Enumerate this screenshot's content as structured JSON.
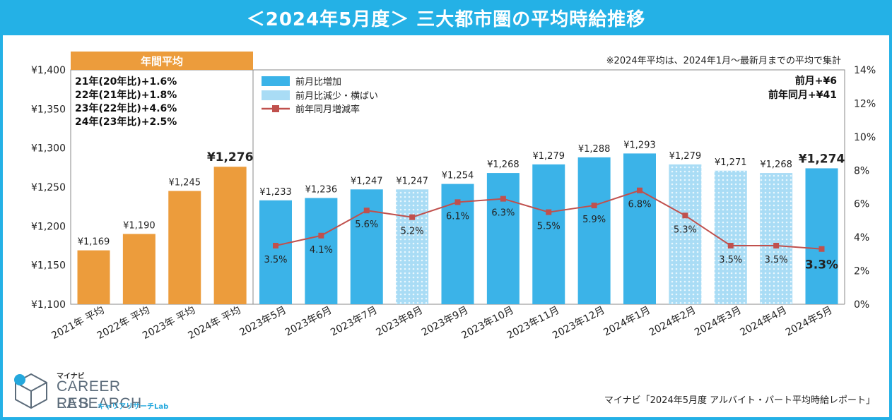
{
  "title": "＜2024年5月度＞ 三大都市圏の平均時給推移",
  "annual_box": {
    "header": "年間平均",
    "lines": [
      "21年(20年比)+1.6%",
      "22年(21年比)+1.8%",
      "23年(22年比)+4.6%",
      "24年(23年比)+2.5%"
    ]
  },
  "note": "※2024年平均は、2024年1月～最新月までの平均で集計",
  "mom": "前月+¥6",
  "yoy": "前年同月+¥41",
  "legend": {
    "increase": "前月比増加",
    "decrease": "前月比減少・横ばい",
    "line": "前年同月増減率"
  },
  "source": "マイナビ「2024年5月度 アルバイト・パート平均時給レポート」",
  "logo": {
    "small": "マイナビ",
    "main": "CAREER RESEARCH",
    "lab": "LAB",
    "jp": "キャリアリサーチLab"
  },
  "colors": {
    "title_bg": "#24b1e6",
    "annual_bar": "#ec9c3c",
    "increase_bar": "#3bb3e8",
    "decrease_bar": "#a9dcf5",
    "line": "#c0504d"
  },
  "chart_data": {
    "type": "bar",
    "categories": [
      "2021年 平均",
      "2022年 平均",
      "2023年 平均",
      "2024年 平均",
      "2023年5月",
      "2023年6月",
      "2023年7月",
      "2023年8月",
      "2023年9月",
      "2023年10月",
      "2023年11月",
      "2023年12月",
      "2024年1月",
      "2024年2月",
      "2024年3月",
      "2024年4月",
      "2024年5月"
    ],
    "values": [
      1169,
      1190,
      1245,
      1276,
      1233,
      1236,
      1247,
      1247,
      1254,
      1268,
      1279,
      1288,
      1293,
      1279,
      1271,
      1268,
      1274
    ],
    "value_labels": [
      "¥1,169",
      "¥1,190",
      "¥1,245",
      "¥1,276",
      "¥1,233",
      "¥1,236",
      "¥1,247",
      "¥1,247",
      "¥1,254",
      "¥1,268",
      "¥1,279",
      "¥1,288",
      "¥1,293",
      "¥1,279",
      "¥1,271",
      "¥1,268",
      "¥1,274"
    ],
    "bar_kind": [
      "annual",
      "annual",
      "annual",
      "annual",
      "increase",
      "increase",
      "increase",
      "decrease",
      "increase",
      "increase",
      "increase",
      "increase",
      "increase",
      "decrease",
      "decrease",
      "decrease",
      "increase"
    ],
    "yoy_rate": [
      null,
      null,
      null,
      null,
      3.5,
      4.1,
      5.6,
      5.2,
      6.1,
      6.3,
      5.5,
      5.9,
      6.8,
      5.3,
      3.5,
      3.5,
      3.3
    ],
    "yoy_labels": [
      "",
      "",
      "",
      "",
      "3.5%",
      "4.1%",
      "5.6%",
      "5.2%",
      "6.1%",
      "6.3%",
      "5.5%",
      "5.9%",
      "6.8%",
      "5.3%",
      "3.5%",
      "3.5%",
      "3.3%"
    ],
    "ylim": [
      1100,
      1400
    ],
    "y_ticks": [
      1100,
      1150,
      1200,
      1250,
      1300,
      1350,
      1400
    ],
    "y_tick_labels": [
      "¥1,100",
      "¥1,150",
      "¥1,200",
      "¥1,250",
      "¥1,300",
      "¥1,350",
      "¥1,400"
    ],
    "y2lim": [
      0,
      14
    ],
    "y2_ticks": [
      0,
      2,
      4,
      6,
      8,
      10,
      12,
      14
    ],
    "y2_tick_labels": [
      "0%",
      "2%",
      "4%",
      "6%",
      "8%",
      "10%",
      "12%",
      "14%"
    ],
    "grid": false,
    "legend_position": "top-left"
  }
}
